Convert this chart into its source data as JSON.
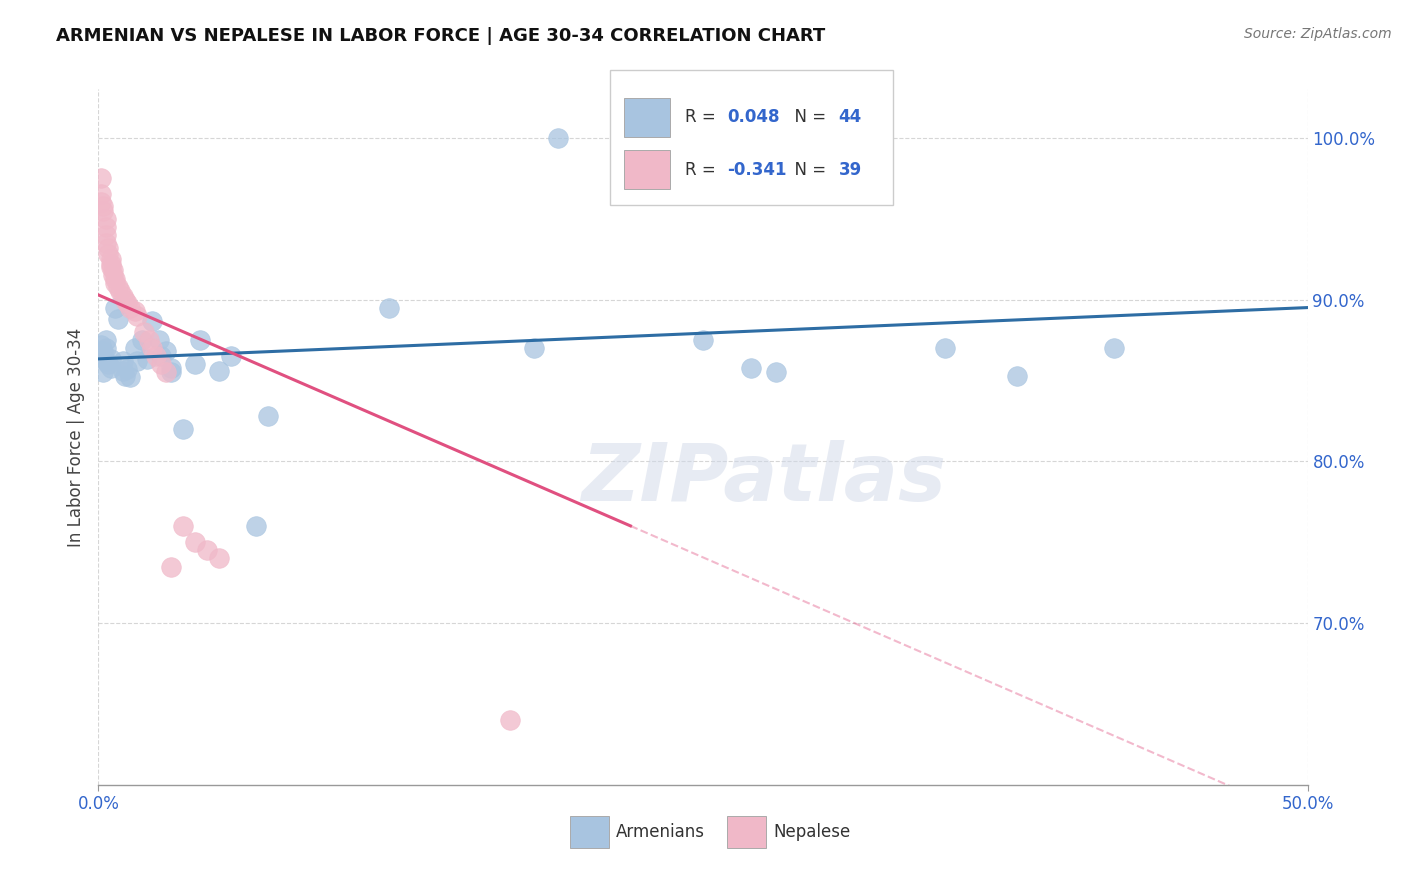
{
  "title": "ARMENIAN VS NEPALESE IN LABOR FORCE | AGE 30-34 CORRELATION CHART",
  "source": "Source: ZipAtlas.com",
  "ylabel": "In Labor Force | Age 30-34",
  "xlim": [
    0.0,
    0.5
  ],
  "ylim": [
    0.6,
    1.03
  ],
  "xtick_positions": [
    0.0,
    0.5
  ],
  "xticklabels": [
    "0.0%",
    "50.0%"
  ],
  "ytick_positions": [
    0.7,
    0.8,
    0.9,
    1.0
  ],
  "yticklabels": [
    "70.0%",
    "80.0%",
    "90.0%",
    "100.0%"
  ],
  "blue_r": 0.048,
  "blue_n": 44,
  "pink_r": -0.341,
  "pink_n": 39,
  "blue_color": "#a8c4e0",
  "pink_color": "#f0b8c8",
  "trendline_blue_color": "#2e6da4",
  "trendline_pink_color": "#e05080",
  "grid_color": "#cccccc",
  "watermark_text": "ZIPatlas",
  "legend_label_blue": "Armenians",
  "legend_label_pink": "Nepalese",
  "blue_x": [
    0.001,
    0.001,
    0.002,
    0.002,
    0.003,
    0.003,
    0.003,
    0.004,
    0.005,
    0.005,
    0.007,
    0.008,
    0.01,
    0.01,
    0.011,
    0.012,
    0.013,
    0.015,
    0.016,
    0.018,
    0.02,
    0.022,
    0.025,
    0.026,
    0.028,
    0.03,
    0.03,
    0.035,
    0.04,
    0.042,
    0.05,
    0.055,
    0.065,
    0.07,
    0.12,
    0.18,
    0.19,
    0.22,
    0.25,
    0.27,
    0.28,
    0.35,
    0.38,
    0.42
  ],
  "blue_y": [
    0.865,
    0.872,
    0.855,
    0.868,
    0.862,
    0.87,
    0.875,
    0.86,
    0.863,
    0.858,
    0.895,
    0.888,
    0.856,
    0.862,
    0.853,
    0.857,
    0.852,
    0.87,
    0.862,
    0.875,
    0.863,
    0.887,
    0.875,
    0.865,
    0.868,
    0.855,
    0.858,
    0.82,
    0.86,
    0.875,
    0.856,
    0.865,
    0.76,
    0.828,
    0.895,
    0.87,
    1.0,
    1.0,
    0.875,
    0.858,
    0.855,
    0.87,
    0.853,
    0.87
  ],
  "pink_x": [
    0.001,
    0.001,
    0.001,
    0.002,
    0.002,
    0.003,
    0.003,
    0.003,
    0.003,
    0.004,
    0.004,
    0.005,
    0.005,
    0.005,
    0.006,
    0.006,
    0.007,
    0.007,
    0.008,
    0.009,
    0.01,
    0.011,
    0.012,
    0.013,
    0.015,
    0.016,
    0.019,
    0.021,
    0.022,
    0.024,
    0.026,
    0.028,
    0.03,
    0.035,
    0.04,
    0.045,
    0.05,
    0.17,
    0.22
  ],
  "pink_y": [
    0.975,
    0.965,
    0.96,
    0.958,
    0.955,
    0.95,
    0.945,
    0.94,
    0.935,
    0.932,
    0.928,
    0.925,
    0.922,
    0.92,
    0.918,
    0.915,
    0.913,
    0.91,
    0.908,
    0.905,
    0.902,
    0.9,
    0.898,
    0.895,
    0.893,
    0.89,
    0.88,
    0.875,
    0.87,
    0.865,
    0.86,
    0.855,
    0.735,
    0.76,
    0.75,
    0.745,
    0.74,
    0.64,
    1.0
  ]
}
